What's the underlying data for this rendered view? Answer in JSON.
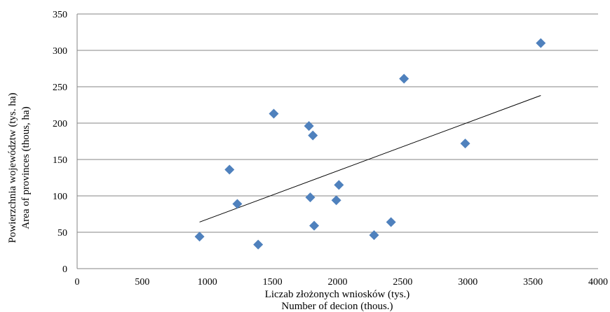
{
  "chart_data": {
    "type": "scatter",
    "title": "",
    "xlabel": [
      "Liczab złożonych wniosków (tys.)",
      "Number of decion (thous.)"
    ],
    "ylabel": [
      "Powierzchnia województw (tys. ha)",
      "Area of provinces (thous, ha)"
    ],
    "xlim": [
      0,
      4000
    ],
    "ylim": [
      0,
      350
    ],
    "xticks": [
      "0",
      "500",
      "1000",
      "1500",
      "2000",
      "2500",
      "3000",
      "3500",
      "4000"
    ],
    "yticks": [
      "0",
      "50",
      "100",
      "150",
      "200",
      "250",
      "300",
      "350"
    ],
    "grid": "horizontal",
    "legend": "none",
    "marker": "diamond",
    "colors": {
      "marker": "#4F81BD",
      "trendline": "#000000",
      "grid": "#868686"
    },
    "points": [
      {
        "x": 940,
        "y": 44
      },
      {
        "x": 1170,
        "y": 136
      },
      {
        "x": 1230,
        "y": 89
      },
      {
        "x": 1390,
        "y": 33
      },
      {
        "x": 1510,
        "y": 213
      },
      {
        "x": 1780,
        "y": 196
      },
      {
        "x": 1790,
        "y": 98
      },
      {
        "x": 1810,
        "y": 183
      },
      {
        "x": 1820,
        "y": 59
      },
      {
        "x": 1990,
        "y": 94
      },
      {
        "x": 2010,
        "y": 115
      },
      {
        "x": 2280,
        "y": 46
      },
      {
        "x": 2410,
        "y": 64
      },
      {
        "x": 2510,
        "y": 261
      },
      {
        "x": 2980,
        "y": 172
      },
      {
        "x": 3560,
        "y": 310
      }
    ],
    "trendline": {
      "type": "linear",
      "x": [
        940,
        3560
      ],
      "y": [
        64,
        238
      ]
    }
  }
}
